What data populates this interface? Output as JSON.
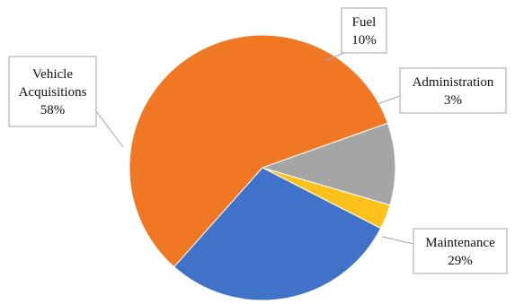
{
  "chart_data": {
    "type": "pie",
    "title": "",
    "slices": [
      {
        "label": "Vehicle Acquisitions",
        "label_lines": [
          "Vehicle",
          "Acquisitions"
        ],
        "value": 58,
        "value_text": "58%",
        "color": "#f07724"
      },
      {
        "label": "Fuel",
        "label_lines": [
          "Fuel"
        ],
        "value": 10,
        "value_text": "10%",
        "color": "#a5a5a5"
      },
      {
        "label": "Administration",
        "label_lines": [
          "Administration"
        ],
        "value": 3,
        "value_text": "3%",
        "color": "#fcc11a"
      },
      {
        "label": "Maintenance",
        "label_lines": [
          "Maintenance"
        ],
        "value": 29,
        "value_text": "29%",
        "color": "#3f72c8"
      }
    ],
    "legend": "none",
    "data_labels": "callouts"
  }
}
